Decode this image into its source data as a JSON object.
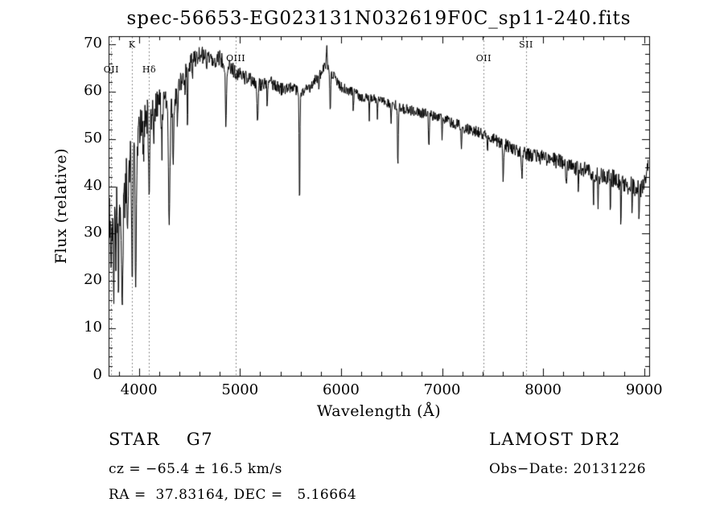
{
  "title": "spec-56653-EG023131N032619F0C_sp11-240.fits",
  "footer": {
    "object_type": "STAR    G7",
    "survey": "LAMOST DR2",
    "cz": "cz = −65.4 ± 16.5 km/s",
    "obs_date": "Obs−Date: 20131226",
    "coords": "RA =  37.83164, DEC =   5.16664"
  },
  "chart_data": {
    "type": "line",
    "title": "spec-56653-EG023131N032619F0C_sp11-240.fits",
    "xlabel": "Wavelength (Å)",
    "ylabel": "Flux (relative)",
    "xlim": [
      3700,
      9050
    ],
    "ylim": [
      0,
      70
    ],
    "xticks": [
      4000,
      5000,
      6000,
      7000,
      8000,
      9000
    ],
    "yticks": [
      0,
      10,
      20,
      30,
      40,
      50,
      60,
      70
    ],
    "grid": false,
    "legend": "none",
    "line_color": "#000000",
    "background": "#ffffff",
    "marker_line_color": "#666666",
    "spectral_lines": [
      {
        "label": "OII",
        "wavelength": 3727,
        "row": 2
      },
      {
        "label": "K",
        "wavelength": 3933,
        "row": 0
      },
      {
        "label": "Hδ",
        "wavelength": 4102,
        "row": 2
      },
      {
        "label": "OIII",
        "wavelength": 4959,
        "row": 1
      },
      {
        "label": "OII",
        "wavelength": 7413,
        "row": 1
      },
      {
        "label": "SII",
        "wavelength": 7832,
        "row": 0
      }
    ],
    "spectrum": {
      "seed": 20131226,
      "step": 4,
      "continuum": [
        [
          3700,
          36
        ],
        [
          3730,
          33
        ],
        [
          3760,
          38
        ],
        [
          3790,
          36
        ],
        [
          3820,
          34
        ],
        [
          3850,
          36
        ],
        [
          3880,
          42
        ],
        [
          3910,
          46
        ],
        [
          3940,
          48
        ],
        [
          3970,
          50
        ],
        [
          4000,
          52
        ],
        [
          4050,
          54
        ],
        [
          4100,
          55
        ],
        [
          4150,
          56
        ],
        [
          4200,
          57
        ],
        [
          4250,
          58
        ],
        [
          4300,
          57
        ],
        [
          4350,
          59
        ],
        [
          4400,
          61
        ],
        [
          4450,
          64
        ],
        [
          4500,
          66
        ],
        [
          4550,
          67
        ],
        [
          4600,
          68
        ],
        [
          4650,
          67.5
        ],
        [
          4700,
          67
        ],
        [
          4750,
          66.5
        ],
        [
          4800,
          67
        ],
        [
          4900,
          65
        ],
        [
          5000,
          63.5
        ],
        [
          5100,
          62.5
        ],
        [
          5200,
          61.5
        ],
        [
          5300,
          62
        ],
        [
          5400,
          60.5
        ],
        [
          5500,
          61
        ],
        [
          5600,
          60
        ],
        [
          5700,
          61
        ],
        [
          5800,
          64
        ],
        [
          5850,
          66
        ],
        [
          5900,
          64
        ],
        [
          5950,
          62.5
        ],
        [
          6000,
          61
        ],
        [
          6100,
          60
        ],
        [
          6200,
          59
        ],
        [
          6300,
          58.5
        ],
        [
          6400,
          58
        ],
        [
          6500,
          57.5
        ],
        [
          6600,
          56.5
        ],
        [
          6700,
          56
        ],
        [
          6800,
          55.5
        ],
        [
          6900,
          55
        ],
        [
          7000,
          54.5
        ],
        [
          7100,
          53.5
        ],
        [
          7200,
          52.5
        ],
        [
          7300,
          52
        ],
        [
          7400,
          51
        ],
        [
          7500,
          50
        ],
        [
          7600,
          49
        ],
        [
          7700,
          48
        ],
        [
          7800,
          47
        ],
        [
          7900,
          46.5
        ],
        [
          8000,
          46
        ],
        [
          8100,
          45.5
        ],
        [
          8200,
          45
        ],
        [
          8300,
          44
        ],
        [
          8400,
          43.5
        ],
        [
          8500,
          42.5
        ],
        [
          8600,
          42
        ],
        [
          8700,
          41.5
        ],
        [
          8800,
          40.5
        ],
        [
          8900,
          40
        ],
        [
          8960,
          39
        ],
        [
          9010,
          41
        ],
        [
          9050,
          46
        ]
      ],
      "absorption_features": [
        [
          3727,
          8,
          5
        ],
        [
          3750,
          18,
          5
        ],
        [
          3770,
          14,
          4
        ],
        [
          3797,
          14,
          5
        ],
        [
          3835,
          18,
          6
        ],
        [
          3889,
          14,
          5
        ],
        [
          3933,
          30,
          6
        ],
        [
          3969,
          34,
          6
        ],
        [
          4045,
          7,
          4
        ],
        [
          4102,
          17,
          6
        ],
        [
          4144,
          6,
          4
        ],
        [
          4227,
          9,
          4
        ],
        [
          4300,
          24,
          8
        ],
        [
          4340,
          14,
          5
        ],
        [
          4383,
          7,
          4
        ],
        [
          4455,
          5,
          4
        ],
        [
          4481,
          14,
          4
        ],
        [
          4531,
          4,
          3
        ],
        [
          4668,
          4,
          3
        ],
        [
          4861,
          13,
          5
        ],
        [
          5175,
          8,
          6
        ],
        [
          5270,
          5,
          4
        ],
        [
          5590,
          26,
          4
        ],
        [
          5780,
          4,
          3
        ],
        [
          5860,
          -4,
          3
        ],
        [
          5893,
          9,
          4
        ],
        [
          6122,
          4,
          3
        ],
        [
          6280,
          5,
          3
        ],
        [
          6360,
          4,
          3
        ],
        [
          6495,
          4,
          3
        ],
        [
          6563,
          13,
          4
        ],
        [
          6870,
          8,
          4
        ],
        [
          7000,
          4,
          3
        ],
        [
          7190,
          5,
          4
        ],
        [
          7450,
          4,
          3
        ],
        [
          7605,
          7,
          5
        ],
        [
          7790,
          6,
          4
        ],
        [
          8230,
          5,
          4
        ],
        [
          8350,
          4,
          3
        ],
        [
          8500,
          6,
          3
        ],
        [
          8545,
          7,
          3
        ],
        [
          8665,
          7,
          3
        ],
        [
          8770,
          10,
          3
        ],
        [
          8880,
          6,
          3
        ],
        [
          8950,
          7,
          3
        ]
      ],
      "noise": [
        [
          3700,
          5.8
        ],
        [
          3950,
          5.0
        ],
        [
          4100,
          4.0
        ],
        [
          4300,
          3.0
        ],
        [
          4500,
          2.0
        ],
        [
          4800,
          1.7
        ],
        [
          5200,
          1.4
        ],
        [
          6000,
          1.1
        ],
        [
          6800,
          1.1
        ],
        [
          7500,
          1.3
        ],
        [
          8200,
          1.7
        ],
        [
          8700,
          2.0
        ],
        [
          9050,
          2.2
        ]
      ]
    }
  }
}
